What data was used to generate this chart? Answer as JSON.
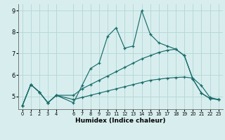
{
  "xlabel": "Humidex (Indice chaleur)",
  "bg_color": "#d8eeee",
  "grid_color": "#b8d8d8",
  "line_color": "#1a6b6b",
  "xlim": [
    -0.5,
    23.5
  ],
  "ylim": [
    4.4,
    9.3
  ],
  "xtick_positions": [
    0,
    1,
    2,
    3,
    4,
    6,
    7,
    8,
    9,
    10,
    11,
    12,
    13,
    14,
    15,
    16,
    17,
    18,
    19,
    20,
    21,
    22,
    23
  ],
  "xtick_labels": [
    "0",
    "1",
    "2",
    "3",
    "4",
    "6",
    "7",
    "8",
    "9",
    "10",
    "11",
    "12",
    "13",
    "14",
    "15",
    "16",
    "17",
    "18",
    "19",
    "20",
    "21",
    "22",
    "23"
  ],
  "ytick_positions": [
    5,
    6,
    7,
    8,
    9
  ],
  "ytick_labels": [
    "5",
    "6",
    "7",
    "8",
    "9"
  ],
  "grid_xticks": [
    0,
    1,
    2,
    3,
    4,
    5,
    6,
    7,
    8,
    9,
    10,
    11,
    12,
    13,
    14,
    15,
    16,
    17,
    18,
    19,
    20,
    21,
    22,
    23
  ],
  "line1_x": [
    0,
    1,
    2,
    3,
    4,
    6,
    7,
    8,
    9,
    10,
    11,
    12,
    13,
    14,
    15,
    16,
    17,
    18,
    19,
    20,
    21,
    22,
    23
  ],
  "line1_y": [
    4.55,
    5.55,
    5.2,
    4.7,
    5.05,
    4.7,
    5.5,
    6.3,
    6.55,
    7.8,
    8.2,
    7.25,
    7.35,
    9.0,
    7.9,
    7.5,
    7.35,
    7.2,
    6.9,
    5.8,
    5.15,
    4.9,
    4.85
  ],
  "line2_x": [
    0,
    1,
    2,
    3,
    4,
    6,
    7,
    8,
    9,
    10,
    11,
    12,
    13,
    14,
    15,
    16,
    17,
    18,
    19,
    20,
    21,
    22,
    23
  ],
  "line2_y": [
    4.55,
    5.55,
    5.2,
    4.7,
    5.05,
    5.05,
    5.35,
    5.55,
    5.75,
    5.95,
    6.15,
    6.35,
    6.55,
    6.75,
    6.9,
    7.05,
    7.15,
    7.2,
    6.9,
    5.8,
    5.15,
    4.9,
    4.85
  ],
  "line3_x": [
    0,
    1,
    2,
    3,
    4,
    6,
    7,
    8,
    9,
    10,
    11,
    12,
    13,
    14,
    15,
    16,
    17,
    18,
    19,
    20,
    21,
    22,
    23
  ],
  "line3_y": [
    4.55,
    5.55,
    5.2,
    4.7,
    5.05,
    4.85,
    4.95,
    5.05,
    5.15,
    5.25,
    5.35,
    5.45,
    5.55,
    5.65,
    5.75,
    5.8,
    5.85,
    5.88,
    5.9,
    5.85,
    5.5,
    4.95,
    4.85
  ]
}
